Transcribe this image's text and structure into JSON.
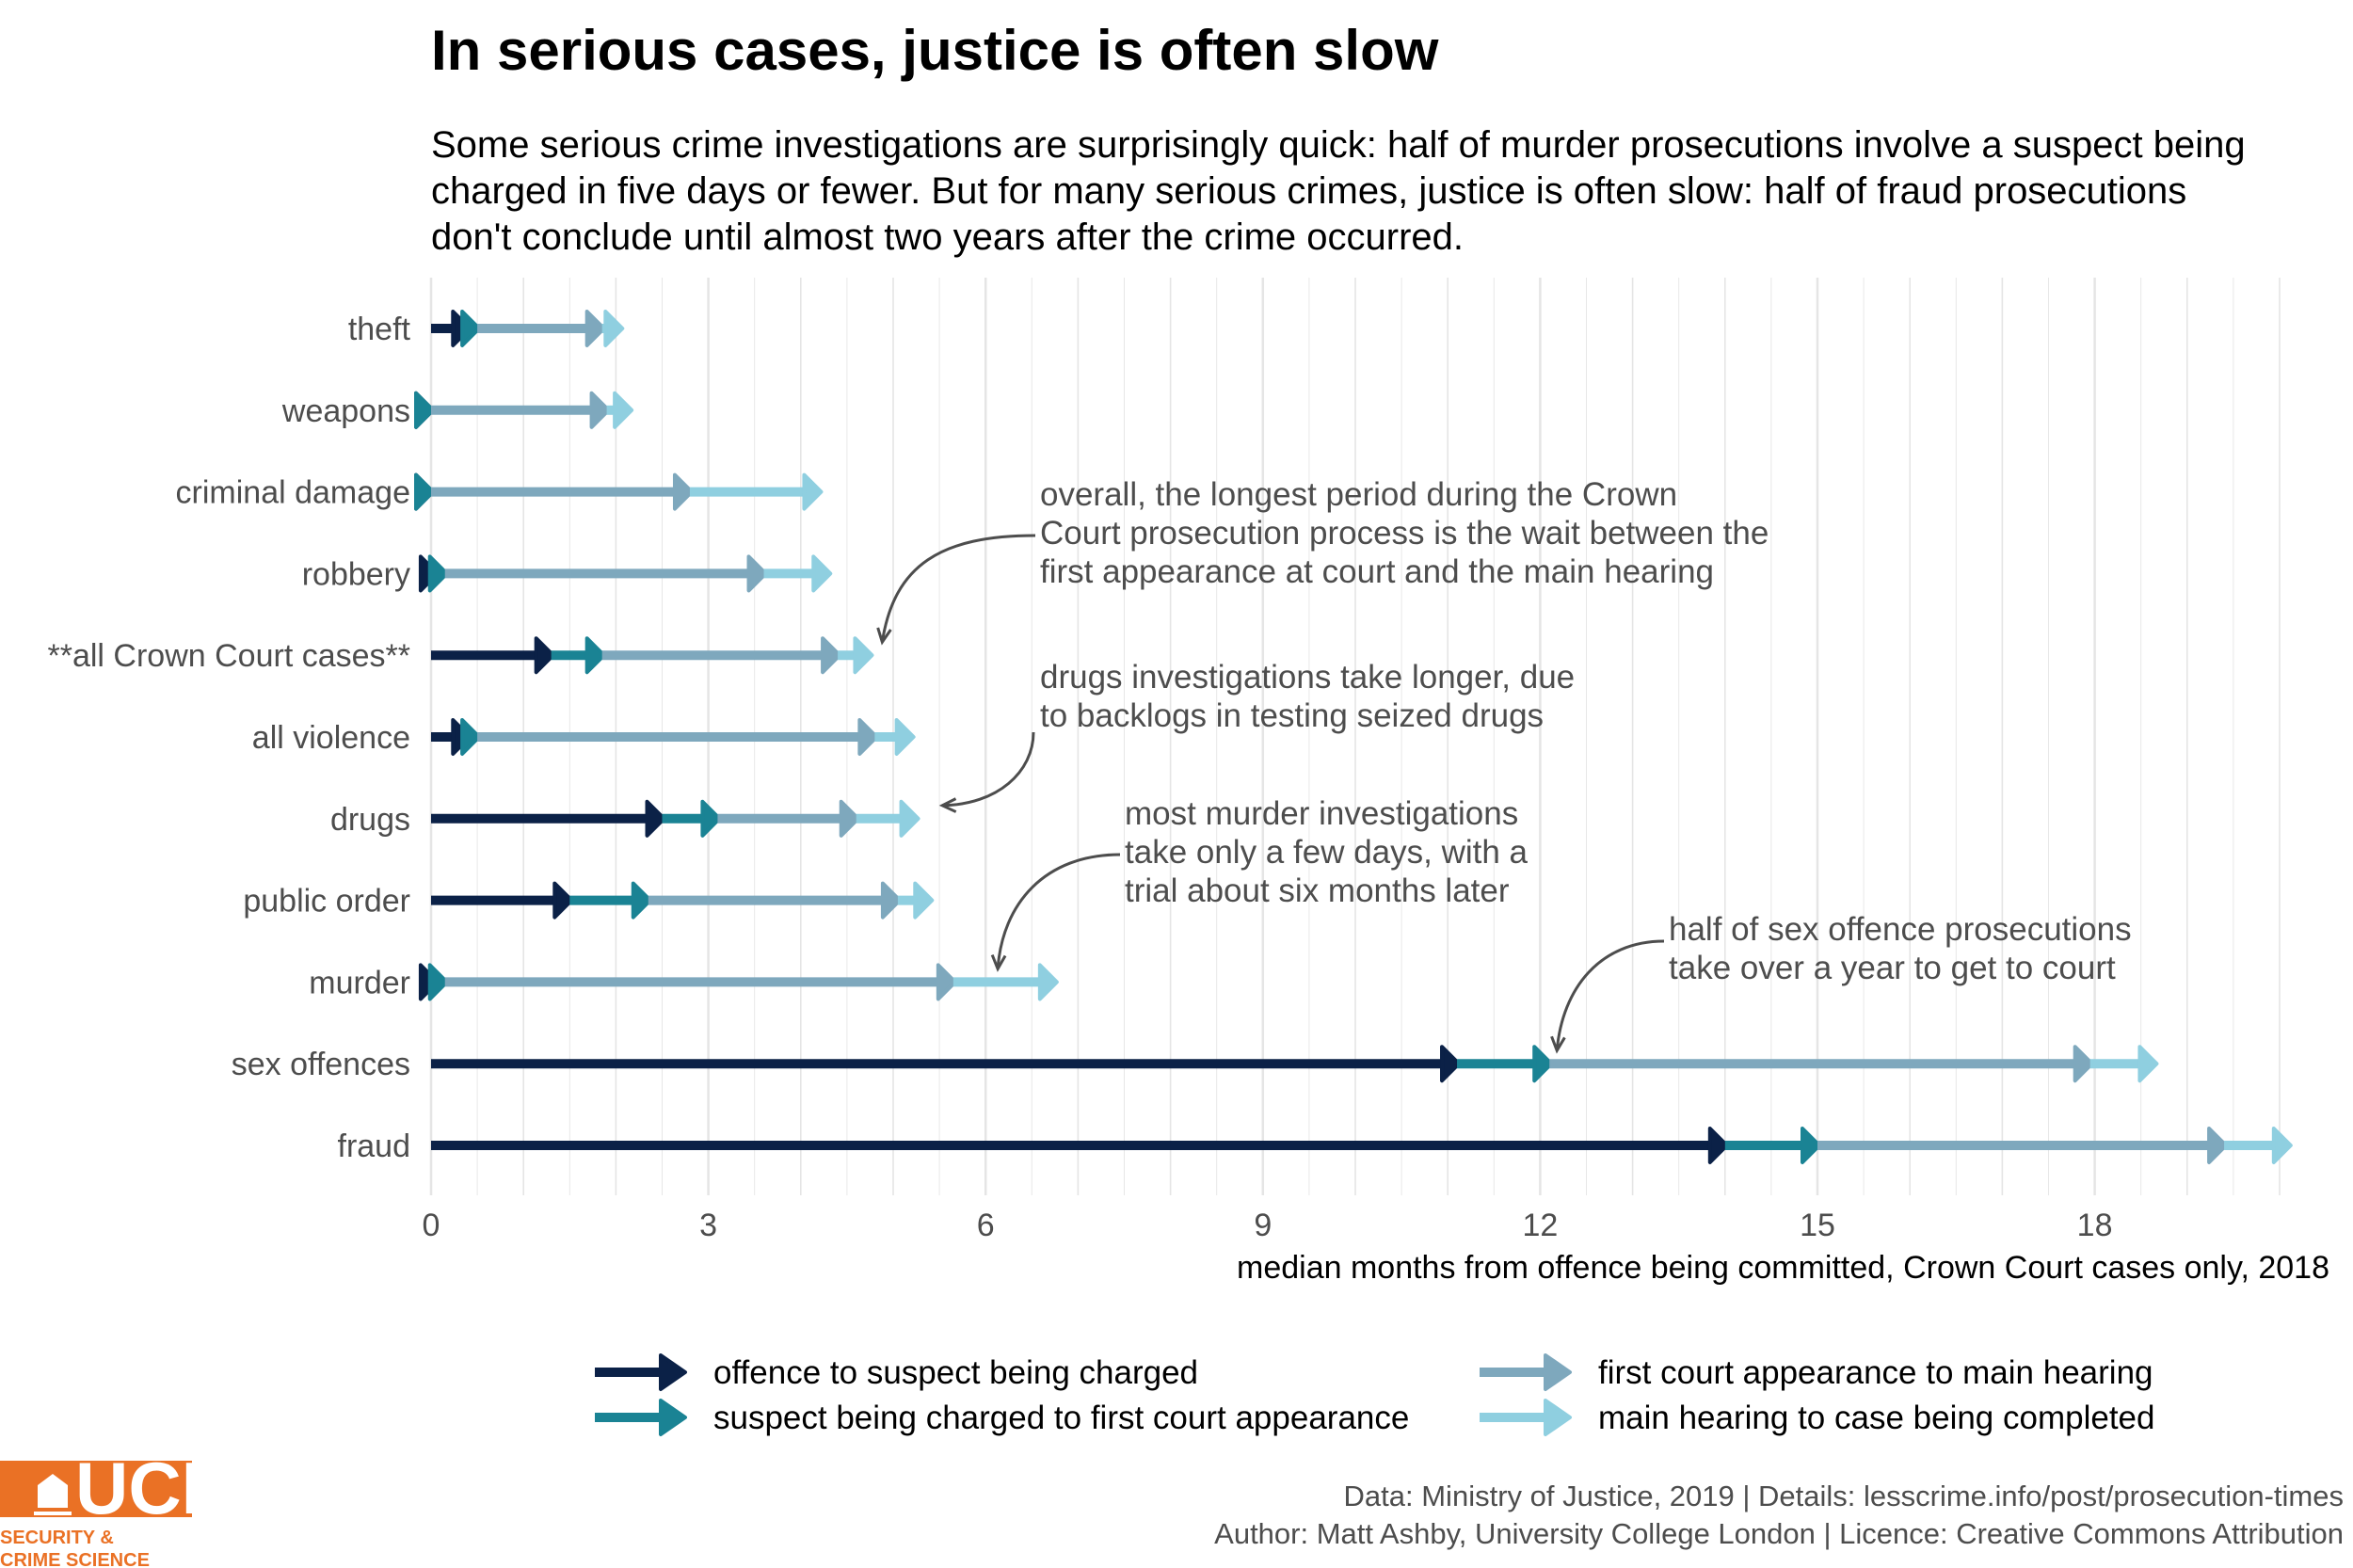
{
  "title": "In serious cases, justice is often slow",
  "subtitle": [
    "Some serious crime investigations are surprisingly quick: half of murder prosecutions involve a suspect being",
    "charged in five days or fewer. But for many serious crimes, justice is often slow: half of fraud prosecutions",
    "don't conclude until almost two years after the crime occurred."
  ],
  "colors": {
    "stage1": "#0b2147",
    "stage2": "#1a8394",
    "stage3": "#7ea8bd",
    "stage4": "#8fcfe0",
    "grid": "#e5e5e5",
    "annotation": "#4d4d4d",
    "ucl_orange": "#ea7125"
  },
  "chart_data": {
    "type": "stacked-arrow-bar",
    "xlabel": "median months from offence being committed, Crown Court cases only, 2018",
    "xlim": [
      0,
      20
    ],
    "xticks": [
      0,
      3,
      6,
      9,
      12,
      15,
      18
    ],
    "grid": true,
    "legend_position": "bottom",
    "series": [
      {
        "key": "stage1",
        "name": "offence to suspect being charged"
      },
      {
        "key": "stage2",
        "name": "suspect being charged to first court appearance"
      },
      {
        "key": "stage3",
        "name": "first court appearance to main hearing"
      },
      {
        "key": "stage4",
        "name": "main hearing to case being completed"
      }
    ],
    "categories": [
      {
        "name": "theft",
        "ends": [
          0.4,
          0.5,
          1.85,
          2.05
        ]
      },
      {
        "name": "weapons",
        "ends": [
          0.0,
          0.0,
          1.9,
          2.15
        ]
      },
      {
        "name": "criminal damage",
        "ends": [
          0.0,
          0.0,
          2.8,
          4.2
        ]
      },
      {
        "name": "robbery",
        "ends": [
          0.05,
          0.15,
          3.6,
          4.3
        ]
      },
      {
        "name": "**all Crown Court cases**",
        "ends": [
          1.3,
          1.85,
          4.4,
          4.75
        ]
      },
      {
        "name": "all violence",
        "ends": [
          0.4,
          0.5,
          4.8,
          5.2
        ]
      },
      {
        "name": "drugs",
        "ends": [
          2.5,
          3.1,
          4.6,
          5.25
        ]
      },
      {
        "name": "public order",
        "ends": [
          1.5,
          2.35,
          5.05,
          5.4
        ]
      },
      {
        "name": "murder",
        "ends": [
          0.05,
          0.15,
          5.65,
          6.75
        ]
      },
      {
        "name": "sex offences",
        "ends": [
          11.1,
          12.1,
          17.95,
          18.65
        ]
      },
      {
        "name": "fraud",
        "ends": [
          14.0,
          15.0,
          19.4,
          20.1
        ]
      }
    ],
    "annotations": [
      {
        "lines": [
          "overall, the longest period during the Crown",
          "Court prosecution process is the wait between the",
          "first appearance at court and the main hearing"
        ],
        "target": {
          "category": "**all Crown Court cases**",
          "x": 4.8
        }
      },
      {
        "lines": [
          "drugs investigations take longer, due",
          "to backlogs in testing seized drugs"
        ],
        "target": {
          "category": "drugs",
          "x": 5.45
        }
      },
      {
        "lines": [
          "most murder investigations",
          "take only a few days, with a",
          "trial about six months later"
        ],
        "target": {
          "category": "murder",
          "x": 6.05
        }
      },
      {
        "lines": [
          "half of sex offence prosecutions",
          "take over a year to get to court"
        ],
        "target": {
          "category": "sex offences",
          "x": 12.1
        }
      }
    ]
  },
  "caption": {
    "line1": "Data: Ministry of Justice, 2019 |  Details: lesscrime.info/post/prosecution-times",
    "line2": "Author: Matt Ashby, University College London |  Licence: Creative Commons Attribution"
  },
  "logo": {
    "wordmark": "UCL",
    "line1": "SECURITY &",
    "line2": "CRIME SCIENCE"
  }
}
